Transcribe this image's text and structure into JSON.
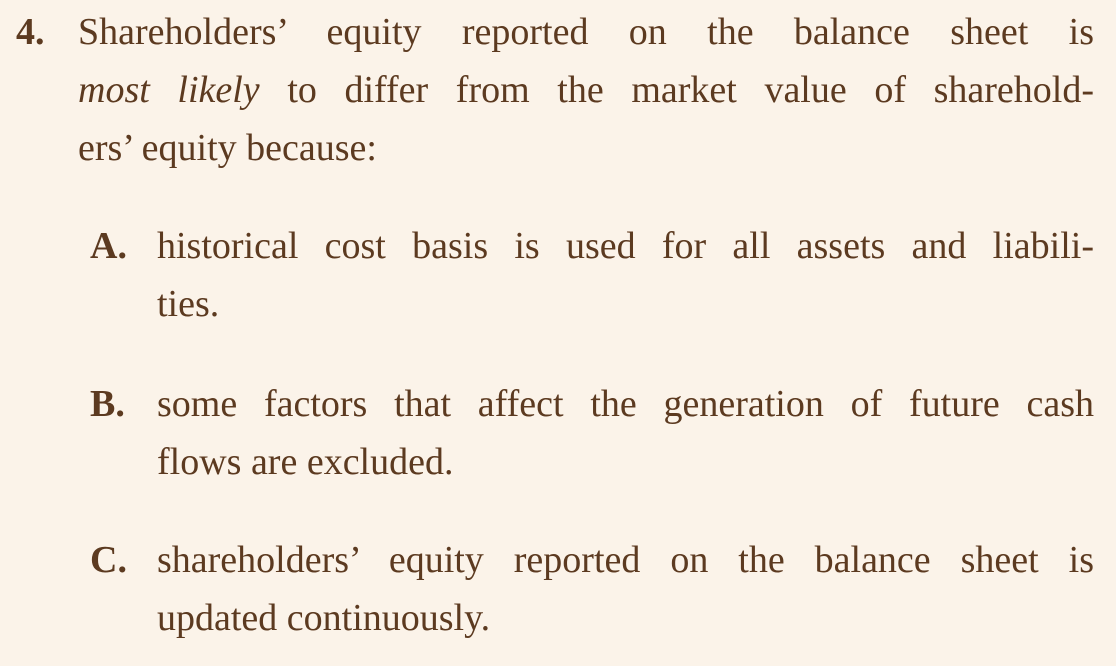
{
  "question": {
    "number": "4.",
    "line1": "Shareholders’ equity reported on the balance sheet is",
    "line2_italic": "most likely",
    "line2_rest": "to differ from the market value of sharehold-",
    "line3": "ers’ equity because:"
  },
  "options": [
    {
      "letter": "A.",
      "line1": "historical cost basis is used for all assets and liabili-",
      "line2": "ties."
    },
    {
      "letter": "B.",
      "line1": "some factors that affect the generation of future cash",
      "line2": "flows are excluded."
    },
    {
      "letter": "C.",
      "line1": "shareholders’ equity reported on the balance sheet is",
      "line2": "updated continuously."
    }
  ]
}
